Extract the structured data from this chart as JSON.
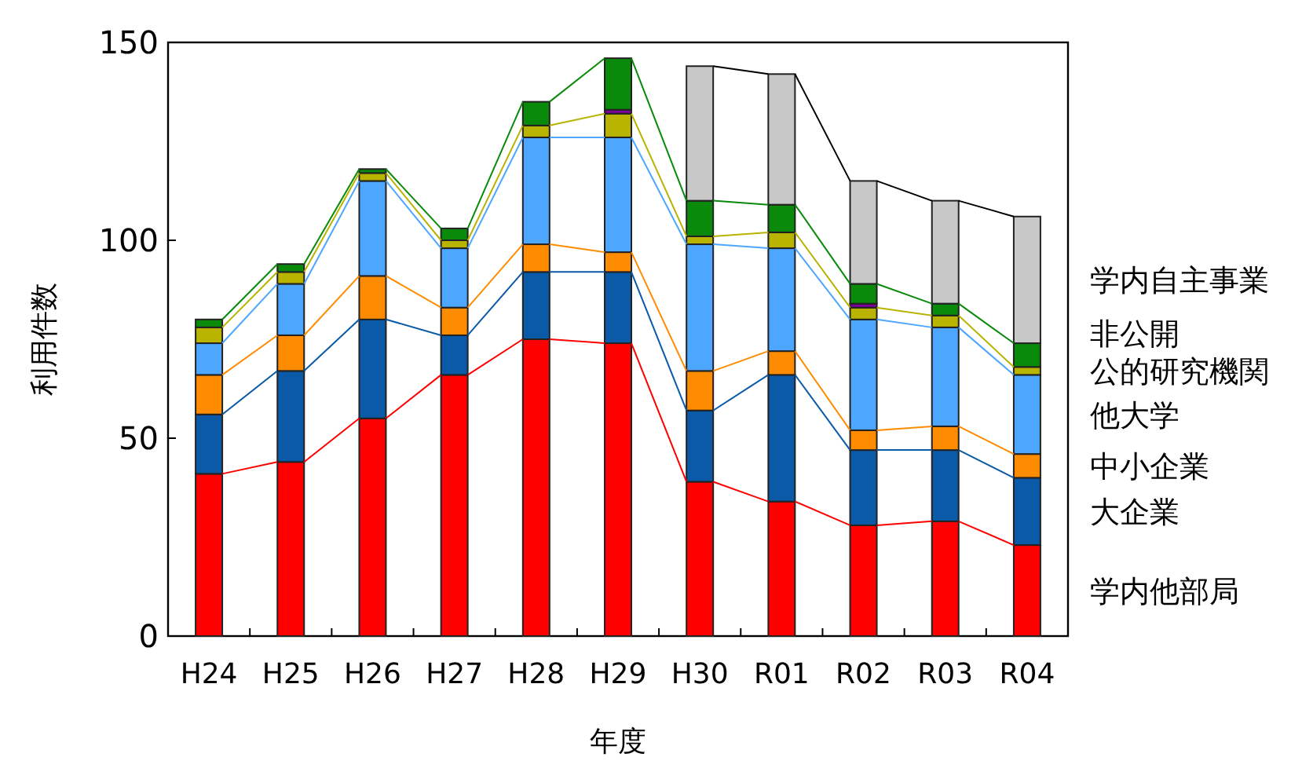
{
  "chart_data": {
    "type": "bar",
    "stacked": true,
    "xlabel": "年度",
    "ylabel": "利用件数",
    "ylim": [
      0,
      150
    ],
    "yticks": [
      0,
      50,
      100,
      150
    ],
    "legend": "right",
    "categories": [
      "H24",
      "H25",
      "H26",
      "H27",
      "H28",
      "H29",
      "H30",
      "R01",
      "R02",
      "R03",
      "R04"
    ],
    "series": [
      {
        "name": "学内他部局",
        "color": "#ff0000",
        "values": [
          41,
          44,
          55,
          66,
          75,
          74,
          39,
          34,
          28,
          29,
          23
        ]
      },
      {
        "name": "大企業",
        "color": "#0a5aa8",
        "values": [
          15,
          23,
          25,
          10,
          17,
          18,
          18,
          32,
          19,
          18,
          17
        ]
      },
      {
        "name": "中小企業",
        "color": "#ff8c00",
        "values": [
          10,
          9,
          11,
          7,
          7,
          5,
          10,
          6,
          5,
          6,
          6
        ]
      },
      {
        "name": "他大学",
        "color": "#4da6ff",
        "values": [
          8,
          13,
          24,
          15,
          27,
          29,
          32,
          26,
          28,
          25,
          20
        ]
      },
      {
        "name": "公的研究機関",
        "color": "#b8b400",
        "values": [
          4,
          3,
          2,
          2,
          3,
          6,
          2,
          4,
          3,
          3,
          2
        ]
      },
      {
        "color": "#8000a0",
        "values": [
          0,
          0,
          0,
          0,
          0,
          1,
          0,
          0,
          1,
          0,
          0
        ]
      },
      {
        "name": "非公開",
        "color": "#0a8a0a",
        "values": [
          2,
          2,
          1,
          3,
          6,
          13,
          9,
          7,
          5,
          3,
          6
        ]
      },
      {
        "name": "学内自主事業",
        "color": "#c8c8c8",
        "values": [
          0,
          0,
          0,
          0,
          0,
          0,
          34,
          33,
          26,
          26,
          32
        ]
      }
    ]
  }
}
